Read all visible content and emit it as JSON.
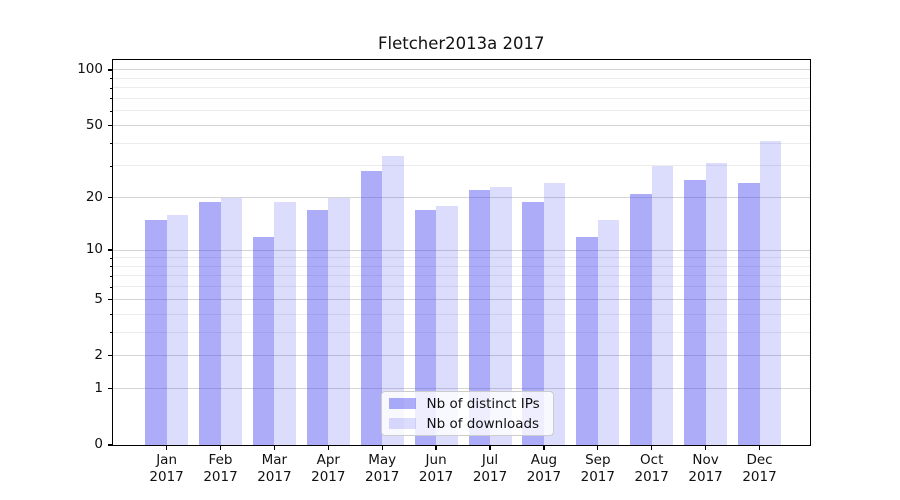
{
  "chart_data": {
    "type": "bar",
    "title": "Fletcher2013a 2017",
    "categories": [
      "Jan",
      "Feb",
      "Mar",
      "Apr",
      "May",
      "Jun",
      "Jul",
      "Aug",
      "Sep",
      "Oct",
      "Nov",
      "Dec"
    ],
    "category_year": "2017",
    "series": [
      {
        "name": "Nb of distinct IPs",
        "base_color": "#4646f0",
        "alpha": 0.45,
        "rendered_color": "#acacf8",
        "values": [
          15,
          19,
          12,
          17,
          28,
          17,
          22,
          19,
          12,
          21,
          25,
          24
        ]
      },
      {
        "name": "Nb of downloads",
        "base_color": "#4646f0",
        "alpha": 0.19,
        "rendered_color": "#dcdcfa",
        "values": [
          16,
          20,
          19,
          20,
          34,
          18,
          23,
          24,
          15,
          30,
          31,
          41
        ]
      }
    ],
    "yscale": "log1p",
    "yticks": [
      100,
      50,
      20,
      10,
      5,
      2,
      1,
      0
    ],
    "minor_gridlines": [
      3,
      4,
      6,
      7,
      8,
      9,
      30,
      40,
      60,
      70,
      80,
      90
    ],
    "ylim": [
      0,
      113
    ],
    "grid": true,
    "legend_position": "lower-center",
    "frame_color": "#000000",
    "major_grid_color": "#d4d4d4",
    "minor_grid_color": "#ececec"
  }
}
